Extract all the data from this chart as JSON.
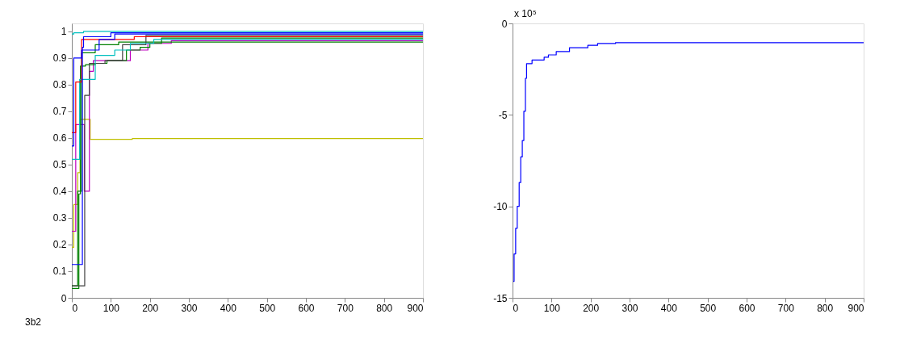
{
  "chart_data": [
    {
      "type": "step",
      "xlim": [
        0,
        900
      ],
      "ylim": [
        0,
        1.03
      ],
      "xticks": [
        0,
        100,
        200,
        300,
        400,
        500,
        600,
        700,
        800,
        900
      ],
      "yticks": [
        0,
        0.1,
        0.2,
        0.3,
        0.4,
        0.5,
        0.6,
        0.7,
        0.8,
        0.9,
        1
      ],
      "grid": false,
      "annotations": [
        "3b2"
      ],
      "series": [
        {
          "color": "#bfbf00",
          "x": [
            0,
            5,
            15,
            21,
            47,
            155,
            900
          ],
          "values": [
            0.19,
            0.35,
            0.47,
            0.67,
            0.595,
            0.598,
            0.598
          ]
        },
        {
          "color": "#bf00bf",
          "x": [
            0,
            10,
            32,
            45,
            55,
            100,
            150,
            195,
            255,
            900
          ],
          "values": [
            0.25,
            0.65,
            0.4,
            0.85,
            0.89,
            0.89,
            0.93,
            0.955,
            0.965,
            0.965
          ]
        },
        {
          "color": "#008000",
          "x": [
            0,
            18,
            22,
            35,
            60,
            90,
            140,
            175,
            200,
            230,
            900
          ],
          "values": [
            0.035,
            0.39,
            0.87,
            0.875,
            0.88,
            0.89,
            0.93,
            0.94,
            0.955,
            0.975,
            0.975
          ]
        },
        {
          "color": "#008000",
          "x": [
            0,
            15,
            25,
            60,
            120,
            900
          ],
          "values": [
            0.045,
            0.4,
            0.92,
            0.95,
            0.96,
            0.96
          ]
        },
        {
          "color": "#404040",
          "x": [
            0,
            33,
            45,
            85,
            130,
            190,
            900
          ],
          "values": [
            0.045,
            0.76,
            0.88,
            0.89,
            0.95,
            0.985,
            0.985
          ]
        },
        {
          "color": "#00bfbf",
          "x": [
            0,
            20,
            60,
            110,
            150,
            210,
            900
          ],
          "values": [
            0.52,
            0.82,
            0.91,
            0.93,
            0.955,
            0.97,
            0.97
          ]
        },
        {
          "color": "#00bfbf",
          "x": [
            0,
            5,
            30,
            900
          ],
          "values": [
            0.99,
            0.995,
            1.0,
            1.0
          ]
        },
        {
          "color": "#ff0000",
          "x": [
            0,
            10,
            25,
            160,
            900
          ],
          "values": [
            0.62,
            0.81,
            0.97,
            0.98,
            0.98
          ]
        },
        {
          "color": "#0000ff",
          "x": [
            0,
            5,
            25,
            70,
            110,
            900
          ],
          "values": [
            0.57,
            0.9,
            0.93,
            0.97,
            0.99,
            0.99
          ]
        },
        {
          "color": "#0000ff",
          "x": [
            0,
            27,
            30,
            100,
            900
          ],
          "values": [
            0.125,
            0.94,
            0.98,
            0.995,
            0.995
          ]
        }
      ]
    },
    {
      "type": "step",
      "xlim": [
        0,
        900
      ],
      "ylim": [
        -15,
        0
      ],
      "xticks": [
        0,
        100,
        200,
        300,
        400,
        500,
        600,
        700,
        800,
        900
      ],
      "yticks": [
        -15,
        -10,
        -5,
        0
      ],
      "grid": false,
      "annotations": [
        "x 10⁵"
      ],
      "series": [
        {
          "color": "#0000ff",
          "x": [
            2,
            4,
            8,
            12,
            17,
            21,
            25,
            29,
            33,
            36,
            50,
            81,
            92,
            112,
            146,
            193,
            218,
            264,
            900
          ],
          "values": [
            -14.1,
            -12.6,
            -11.2,
            -10,
            -8.7,
            -7.3,
            -6.4,
            -4.8,
            -3.0,
            -2.2,
            -2.0,
            -1.85,
            -1.72,
            -1.54,
            -1.33,
            -1.2,
            -1.1,
            -1.05,
            -1.05
          ]
        }
      ]
    }
  ]
}
